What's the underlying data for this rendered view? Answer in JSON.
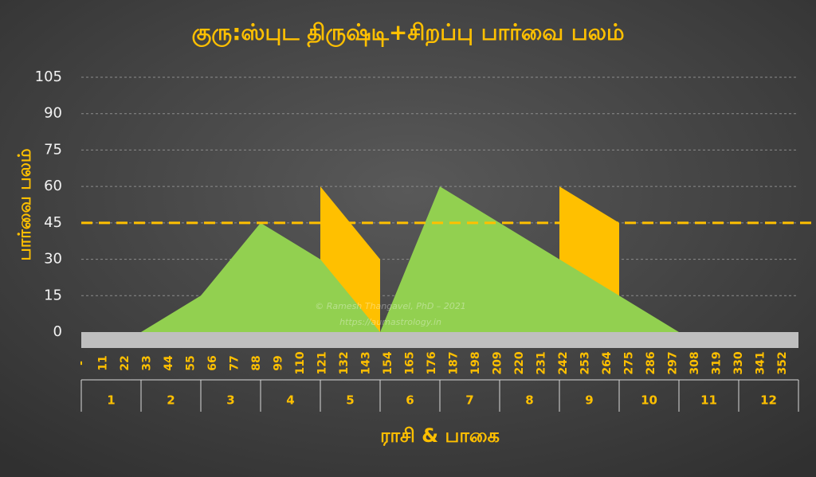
{
  "chart_data": {
    "type": "area",
    "title": "குரு:ஸ்புட திருஷ்டி+சிறப்பு பார்வை பலம்",
    "y_label": "பார்வை பலம்",
    "x_label": "ராசி & பாகை",
    "annotations": [
      "© Ramesh Thangavel, PhD – 2021",
      "https://aumastrology.in"
    ],
    "xlim": [
      0,
      360
    ],
    "xticks": [
      {
        "value": 0,
        "label": "-"
      },
      11,
      22,
      33,
      44,
      55,
      66,
      77,
      88,
      99,
      110,
      121,
      132,
      143,
      154,
      165,
      176,
      187,
      198,
      209,
      220,
      231,
      242,
      253,
      264,
      275,
      286,
      297,
      308,
      319,
      330,
      341,
      352
    ],
    "signs": [
      "1",
      "2",
      "3",
      "4",
      "5",
      "6",
      "7",
      "8",
      "9",
      "10",
      "11",
      "12"
    ],
    "ylim": [
      0,
      105
    ],
    "yticks": [
      0,
      15,
      30,
      45,
      60,
      75,
      90,
      105
    ],
    "grid": true,
    "threshold": 45,
    "threshold_color": "#ffc000",
    "series": [
      {
        "color": "#ffc000",
        "x": [
          120,
          150
        ],
        "values": [
          60,
          30
        ]
      },
      {
        "color": "#ffc000",
        "x": [
          240,
          270
        ],
        "values": [
          60,
          45
        ]
      },
      {
        "color": "#92d050",
        "x": [
          30,
          60,
          90,
          120,
          150,
          180,
          210,
          240,
          270,
          300
        ],
        "values": [
          0,
          15,
          45,
          30,
          0,
          60,
          45,
          30,
          15,
          0
        ]
      }
    ]
  }
}
